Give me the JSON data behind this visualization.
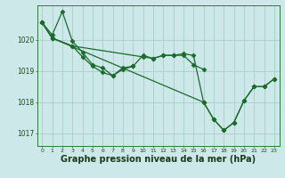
{
  "background_color": "#cce8e8",
  "grid_color": "#aacccc",
  "line_color": "#1a6b2a",
  "marker_color": "#1a6b2a",
  "xlabel": "Graphe pression niveau de la mer (hPa)",
  "xlabel_fontsize": 7,
  "ylim": [
    1016.6,
    1021.1
  ],
  "xlim": [
    -0.5,
    23.5
  ],
  "yticks": [
    1017,
    1018,
    1019,
    1020
  ],
  "xticks": [
    0,
    1,
    2,
    3,
    4,
    5,
    6,
    7,
    8,
    9,
    10,
    11,
    12,
    13,
    14,
    15,
    16,
    17,
    18,
    19,
    20,
    21,
    22,
    23
  ],
  "lines": [
    {
      "x": [
        0,
        1,
        2,
        3,
        4,
        5,
        6,
        7,
        8,
        9,
        10,
        11,
        12,
        13,
        14,
        15,
        16
      ],
      "y": [
        1020.55,
        1020.15,
        1020.9,
        1019.95,
        1019.6,
        1019.2,
        1019.1,
        1018.85,
        1019.1,
        1019.15,
        1019.5,
        1019.4,
        1019.5,
        1019.5,
        1019.5,
        1019.2,
        1019.05
      ]
    },
    {
      "x": [
        0,
        1,
        3,
        4,
        5,
        6,
        7,
        8,
        9
      ],
      "y": [
        1020.55,
        1020.05,
        1019.8,
        1019.45,
        1019.15,
        1018.95,
        1018.85,
        1019.05,
        1019.15
      ]
    },
    {
      "x": [
        0,
        1,
        3,
        10,
        11,
        12,
        13,
        14,
        15,
        16,
        17,
        18,
        19,
        20,
        21,
        22,
        23
      ],
      "y": [
        1020.55,
        1020.05,
        1019.8,
        1019.45,
        1019.4,
        1019.5,
        1019.5,
        1019.55,
        1019.5,
        1018.0,
        1017.45,
        1017.1,
        1017.35,
        1018.05,
        1018.5,
        1018.5,
        1018.75
      ]
    },
    {
      "x": [
        0,
        1,
        16,
        17,
        18,
        19,
        20,
        21,
        22,
        23
      ],
      "y": [
        1020.55,
        1020.05,
        1018.0,
        1017.45,
        1017.1,
        1017.35,
        1018.05,
        1018.5,
        1018.5,
        1018.75
      ]
    }
  ]
}
